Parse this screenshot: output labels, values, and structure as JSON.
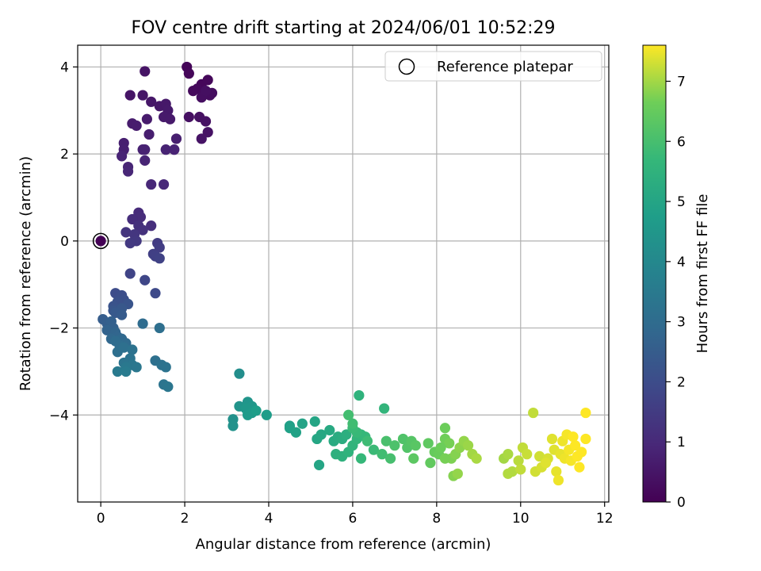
{
  "chart_data": {
    "type": "scatter",
    "title": "FOV centre drift starting at 2024/06/01 10:52:29",
    "xlabel": "Angular distance from reference (arcmin)",
    "ylabel": "Rotation from reference (arcmin)",
    "xlim": [
      -0.55,
      12.1
    ],
    "ylim": [
      -6.0,
      4.5
    ],
    "xticks": [
      0,
      2,
      4,
      6,
      8,
      10,
      12
    ],
    "yticks": [
      -4,
      -2,
      0,
      2,
      4
    ],
    "xtick_labels": [
      "0",
      "2",
      "4",
      "6",
      "8",
      "10",
      "12"
    ],
    "ytick_labels": [
      "−4",
      "−2",
      "0",
      "2",
      "4"
    ],
    "grid": true,
    "legend": {
      "position": "top-right",
      "entries": [
        "Reference platepar"
      ]
    },
    "colorbar": {
      "label": "Hours from first FF file",
      "range": [
        0,
        7.6
      ],
      "ticks": [
        0,
        1,
        2,
        3,
        4,
        5,
        6,
        7
      ],
      "tick_labels": [
        "0",
        "1",
        "2",
        "3",
        "4",
        "5",
        "6",
        "7"
      ],
      "colormap": "viridis"
    },
    "reference_point": {
      "x": 0,
      "y": 0
    },
    "points": [
      [
        0.0,
        0.0,
        0.02
      ],
      [
        2.05,
        4.0,
        0.1
      ],
      [
        2.1,
        3.85,
        0.12
      ],
      [
        2.4,
        3.6,
        0.15
      ],
      [
        2.55,
        3.7,
        0.17
      ],
      [
        2.3,
        3.5,
        0.2
      ],
      [
        2.2,
        3.45,
        0.22
      ],
      [
        2.45,
        3.4,
        0.25
      ],
      [
        2.6,
        3.35,
        0.27
      ],
      [
        2.65,
        3.4,
        0.3
      ],
      [
        2.4,
        3.3,
        0.32
      ],
      [
        2.5,
        3.45,
        0.34
      ],
      [
        2.1,
        2.85,
        0.36
      ],
      [
        2.35,
        2.85,
        0.38
      ],
      [
        2.5,
        2.75,
        0.4
      ],
      [
        2.55,
        2.5,
        0.42
      ],
      [
        2.4,
        2.35,
        0.44
      ],
      [
        1.05,
        3.9,
        0.46
      ],
      [
        0.7,
        3.35,
        0.48
      ],
      [
        1.0,
        3.35,
        0.5
      ],
      [
        1.2,
        3.2,
        0.52
      ],
      [
        1.4,
        3.1,
        0.54
      ],
      [
        1.55,
        3.15,
        0.56
      ],
      [
        1.6,
        3.0,
        0.58
      ],
      [
        1.5,
        2.85,
        0.6
      ],
      [
        1.65,
        2.8,
        0.62
      ],
      [
        1.1,
        2.8,
        0.64
      ],
      [
        0.75,
        2.7,
        0.66
      ],
      [
        0.85,
        2.65,
        0.68
      ],
      [
        1.15,
        2.45,
        0.7
      ],
      [
        1.8,
        2.35,
        0.72
      ],
      [
        0.55,
        2.25,
        0.74
      ],
      [
        0.55,
        2.1,
        0.76
      ],
      [
        1.0,
        2.1,
        0.78
      ],
      [
        1.05,
        2.1,
        0.8
      ],
      [
        1.55,
        2.1,
        0.82
      ],
      [
        1.75,
        2.1,
        0.84
      ],
      [
        0.5,
        1.95,
        0.86
      ],
      [
        1.05,
        1.85,
        0.88
      ],
      [
        0.65,
        1.7,
        0.9
      ],
      [
        0.65,
        1.6,
        0.92
      ],
      [
        1.2,
        1.3,
        0.95
      ],
      [
        1.5,
        1.3,
        0.98
      ],
      [
        0.9,
        0.65,
        1.05
      ],
      [
        0.95,
        0.55,
        1.08
      ],
      [
        0.75,
        0.5,
        1.1
      ],
      [
        1.2,
        0.35,
        1.15
      ],
      [
        0.9,
        0.35,
        1.2
      ],
      [
        1.0,
        0.25,
        1.25
      ],
      [
        0.6,
        0.2,
        1.3
      ],
      [
        0.8,
        0.15,
        1.35
      ],
      [
        0.85,
        0.0,
        1.4
      ],
      [
        0.7,
        -0.05,
        1.45
      ],
      [
        1.35,
        -0.05,
        1.5
      ],
      [
        1.4,
        -0.15,
        1.55
      ],
      [
        1.25,
        -0.3,
        1.6
      ],
      [
        1.3,
        -0.35,
        1.65
      ],
      [
        1.4,
        -0.4,
        1.7
      ],
      [
        0.7,
        -0.75,
        1.75
      ],
      [
        1.05,
        -0.9,
        1.8
      ],
      [
        1.3,
        -1.2,
        1.9
      ],
      [
        0.35,
        -1.2,
        2.0
      ],
      [
        0.5,
        -1.25,
        2.05
      ],
      [
        0.55,
        -1.35,
        2.1
      ],
      [
        0.4,
        -1.4,
        2.15
      ],
      [
        0.3,
        -1.5,
        2.2
      ],
      [
        0.65,
        -1.45,
        2.25
      ],
      [
        0.3,
        -1.6,
        2.3
      ],
      [
        0.5,
        -1.55,
        2.35
      ],
      [
        0.35,
        -1.65,
        2.4
      ],
      [
        0.5,
        -1.7,
        2.45
      ],
      [
        0.05,
        -1.8,
        2.5
      ],
      [
        0.15,
        -1.9,
        2.55
      ],
      [
        0.25,
        -1.85,
        2.6
      ],
      [
        0.3,
        -2.0,
        2.65
      ],
      [
        0.15,
        -2.05,
        2.7
      ],
      [
        0.35,
        -2.1,
        2.75
      ],
      [
        0.4,
        -2.2,
        2.8
      ],
      [
        0.25,
        -2.25,
        2.85
      ],
      [
        0.5,
        -2.25,
        2.9
      ],
      [
        0.6,
        -2.35,
        2.95
      ],
      [
        0.35,
        -2.3,
        3.0
      ],
      [
        0.45,
        -2.4,
        3.05
      ],
      [
        0.4,
        -2.55,
        3.1
      ],
      [
        0.55,
        -2.45,
        3.15
      ],
      [
        0.75,
        -2.5,
        3.2
      ],
      [
        0.7,
        -2.7,
        3.25
      ],
      [
        0.55,
        -2.8,
        3.3
      ],
      [
        0.75,
        -2.85,
        3.35
      ],
      [
        0.85,
        -2.9,
        3.4
      ],
      [
        0.6,
        -2.9,
        3.45
      ],
      [
        0.4,
        -3.0,
        3.5
      ],
      [
        0.6,
        -3.0,
        3.55
      ],
      [
        1.0,
        -1.9,
        3.0
      ],
      [
        1.4,
        -2.0,
        3.1
      ],
      [
        1.3,
        -2.75,
        3.15
      ],
      [
        1.45,
        -2.85,
        3.2
      ],
      [
        1.55,
        -2.9,
        3.25
      ],
      [
        1.5,
        -3.3,
        3.3
      ],
      [
        1.6,
        -3.35,
        3.35
      ],
      [
        3.3,
        -3.05,
        4.2
      ],
      [
        3.15,
        -4.1,
        4.3
      ],
      [
        3.15,
        -4.25,
        4.35
      ],
      [
        3.3,
        -3.8,
        4.4
      ],
      [
        3.5,
        -3.7,
        4.45
      ],
      [
        3.6,
        -3.8,
        4.5
      ],
      [
        3.45,
        -3.85,
        4.55
      ],
      [
        3.6,
        -3.95,
        4.6
      ],
      [
        3.5,
        -4.0,
        4.65
      ],
      [
        3.95,
        -4.0,
        4.7
      ],
      [
        3.7,
        -3.9,
        4.75
      ],
      [
        4.5,
        -4.25,
        4.8
      ],
      [
        4.5,
        -4.3,
        4.85
      ],
      [
        4.65,
        -4.4,
        4.9
      ],
      [
        4.8,
        -4.2,
        4.95
      ],
      [
        5.1,
        -4.15,
        5.0
      ],
      [
        5.15,
        -4.55,
        5.05
      ],
      [
        5.25,
        -4.45,
        5.1
      ],
      [
        5.45,
        -4.35,
        5.15
      ],
      [
        5.55,
        -4.6,
        5.2
      ],
      [
        5.65,
        -4.5,
        5.25
      ],
      [
        5.75,
        -4.55,
        5.3
      ],
      [
        5.85,
        -4.45,
        5.35
      ],
      [
        5.6,
        -4.9,
        5.4
      ],
      [
        5.75,
        -4.95,
        5.45
      ],
      [
        5.9,
        -4.85,
        5.5
      ],
      [
        6.0,
        -4.7,
        5.55
      ],
      [
        6.1,
        -4.55,
        5.6
      ],
      [
        6.2,
        -4.45,
        5.65
      ],
      [
        6.3,
        -4.5,
        5.7
      ],
      [
        6.1,
        -4.4,
        5.75
      ],
      [
        6.0,
        -4.3,
        5.8
      ],
      [
        6.35,
        -4.6,
        5.85
      ],
      [
        6.0,
        -4.2,
        5.9
      ],
      [
        5.9,
        -4.0,
        5.95
      ],
      [
        6.15,
        -3.55,
        5.5
      ],
      [
        6.75,
        -3.85,
        5.6
      ],
      [
        5.2,
        -5.15,
        5.0
      ],
      [
        6.2,
        -5.0,
        5.7
      ],
      [
        6.5,
        -4.8,
        5.8
      ],
      [
        6.7,
        -4.9,
        5.9
      ],
      [
        6.9,
        -5.0,
        6.0
      ],
      [
        6.8,
        -4.6,
        6.05
      ],
      [
        7.0,
        -4.7,
        6.1
      ],
      [
        7.2,
        -4.55,
        6.15
      ],
      [
        7.3,
        -4.75,
        6.2
      ],
      [
        7.4,
        -4.6,
        6.25
      ],
      [
        7.5,
        -4.7,
        6.3
      ],
      [
        7.45,
        -5.0,
        6.35
      ],
      [
        7.8,
        -4.65,
        6.4
      ],
      [
        7.85,
        -5.1,
        6.45
      ],
      [
        7.95,
        -4.85,
        6.5
      ],
      [
        8.05,
        -4.9,
        6.55
      ],
      [
        8.2,
        -4.3,
        6.6
      ],
      [
        8.2,
        -4.55,
        6.65
      ],
      [
        8.3,
        -4.65,
        6.7
      ],
      [
        8.35,
        -5.0,
        6.75
      ],
      [
        8.45,
        -4.9,
        6.8
      ],
      [
        8.55,
        -4.75,
        6.85
      ],
      [
        8.65,
        -4.6,
        6.9
      ],
      [
        8.75,
        -4.7,
        6.95
      ],
      [
        8.85,
        -4.9,
        7.0
      ],
      [
        8.95,
        -5.0,
        7.05
      ],
      [
        8.4,
        -5.4,
        6.8
      ],
      [
        8.5,
        -5.35,
        6.9
      ],
      [
        8.2,
        -5.0,
        6.7
      ],
      [
        8.1,
        -4.75,
        6.6
      ],
      [
        9.6,
        -5.0,
        7.0
      ],
      [
        9.7,
        -4.9,
        7.05
      ],
      [
        9.8,
        -5.3,
        7.1
      ],
      [
        9.95,
        -5.05,
        7.15
      ],
      [
        10.05,
        -4.75,
        7.2
      ],
      [
        10.15,
        -4.9,
        7.25
      ],
      [
        10.0,
        -5.25,
        7.2
      ],
      [
        10.35,
        -5.3,
        7.3
      ],
      [
        10.45,
        -4.95,
        7.3
      ],
      [
        10.5,
        -5.2,
        7.35
      ],
      [
        10.3,
        -3.95,
        7.2
      ],
      [
        10.65,
        -5.0,
        7.35
      ],
      [
        10.75,
        -4.55,
        7.4
      ],
      [
        10.8,
        -4.8,
        7.4
      ],
      [
        10.85,
        -5.3,
        7.45
      ],
      [
        10.95,
        -4.9,
        7.45
      ],
      [
        11.0,
        -4.6,
        7.5
      ],
      [
        11.05,
        -5.0,
        7.5
      ],
      [
        11.1,
        -4.45,
        7.55
      ],
      [
        11.15,
        -4.8,
        7.55
      ],
      [
        11.2,
        -5.05,
        7.55
      ],
      [
        11.25,
        -4.5,
        7.6
      ],
      [
        11.3,
        -4.7,
        7.6
      ],
      [
        11.35,
        -4.95,
        7.6
      ],
      [
        11.4,
        -5.2,
        7.6
      ],
      [
        11.45,
        -4.85,
        7.6
      ],
      [
        11.55,
        -4.55,
        7.6
      ],
      [
        11.55,
        -3.95,
        7.6
      ],
      [
        10.9,
        -5.5,
        7.5
      ],
      [
        10.6,
        -5.1,
        7.4
      ],
      [
        9.7,
        -5.35,
        7.1
      ]
    ]
  }
}
